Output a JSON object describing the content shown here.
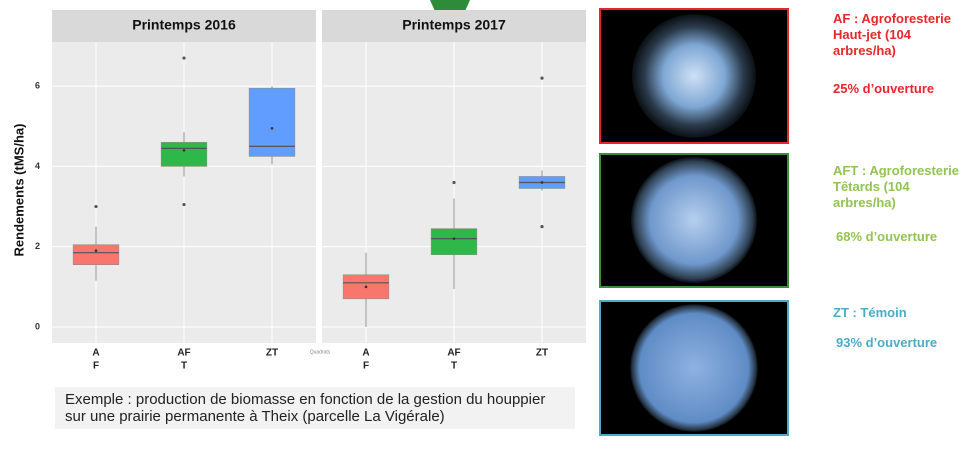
{
  "chart_data": [
    {
      "type": "box",
      "title": "Printemps 2016",
      "y_label": "Rendements (tMS/ha)",
      "categories": [
        [
          "A",
          "F"
        ],
        [
          "AF",
          "T"
        ],
        [
          "ZT"
        ]
      ],
      "colors": [
        "#f8766d",
        "#2fb84a",
        "#619cff"
      ],
      "boxes": [
        {
          "min": 1.15,
          "q1": 1.55,
          "median": 1.85,
          "q3": 2.05,
          "max": 2.5,
          "mean": 1.9,
          "outliers": [
            3.0
          ]
        },
        {
          "min": 3.75,
          "q1": 4.0,
          "median": 4.45,
          "q3": 4.6,
          "max": 4.85,
          "mean": 4.4,
          "outliers": [
            6.7,
            3.05
          ]
        },
        {
          "min": 4.05,
          "q1": 4.25,
          "median": 4.5,
          "q3": 5.95,
          "max": 6.0,
          "mean": 4.95,
          "outliers": []
        }
      ],
      "ylim": [
        -0.4,
        7.1
      ],
      "yticks": [
        0,
        2,
        4,
        6
      ],
      "grid": true
    },
    {
      "type": "box",
      "title": "Printemps 2017",
      "x_label": "Quadrats",
      "categories": [
        [
          "A",
          "F"
        ],
        [
          "AF",
          "T"
        ],
        [
          "ZT"
        ]
      ],
      "colors": [
        "#f8766d",
        "#2fb84a",
        "#619cff"
      ],
      "boxes": [
        {
          "min": 0.0,
          "q1": 0.7,
          "median": 1.1,
          "q3": 1.3,
          "max": 1.85,
          "mean": 1.0,
          "outliers": []
        },
        {
          "min": 0.95,
          "q1": 1.8,
          "median": 2.2,
          "q3": 2.45,
          "max": 3.2,
          "mean": 2.2,
          "outliers": [
            3.6
          ]
        },
        {
          "min": 3.4,
          "q1": 3.45,
          "median": 3.6,
          "q3": 3.75,
          "max": 3.9,
          "mean": 3.6,
          "outliers": [
            6.2,
            2.5
          ]
        }
      ],
      "ylim": [
        -0.4,
        7.1
      ],
      "yticks": [
        0,
        2,
        4,
        6
      ],
      "grid": true
    }
  ],
  "caption": "Exemple : production de biomasse en fonction de la gestion du houppier sur une prairie permanente à Theix (parcelle La Vigérale)",
  "photos": [
    {
      "label": "AF : Agroforesterie Haut-jet (104 arbres/ha)",
      "opening": "25% d’ouverture",
      "color": "#e8262a"
    },
    {
      "label": "AFT : Agroforesterie Têtards (104 arbres/ha)",
      "opening": "68% d’ouverture",
      "color": "#92c353"
    },
    {
      "label": "ZT : Témoin",
      "opening": "93% d’ouverture",
      "color": "#4bacc6"
    }
  ]
}
